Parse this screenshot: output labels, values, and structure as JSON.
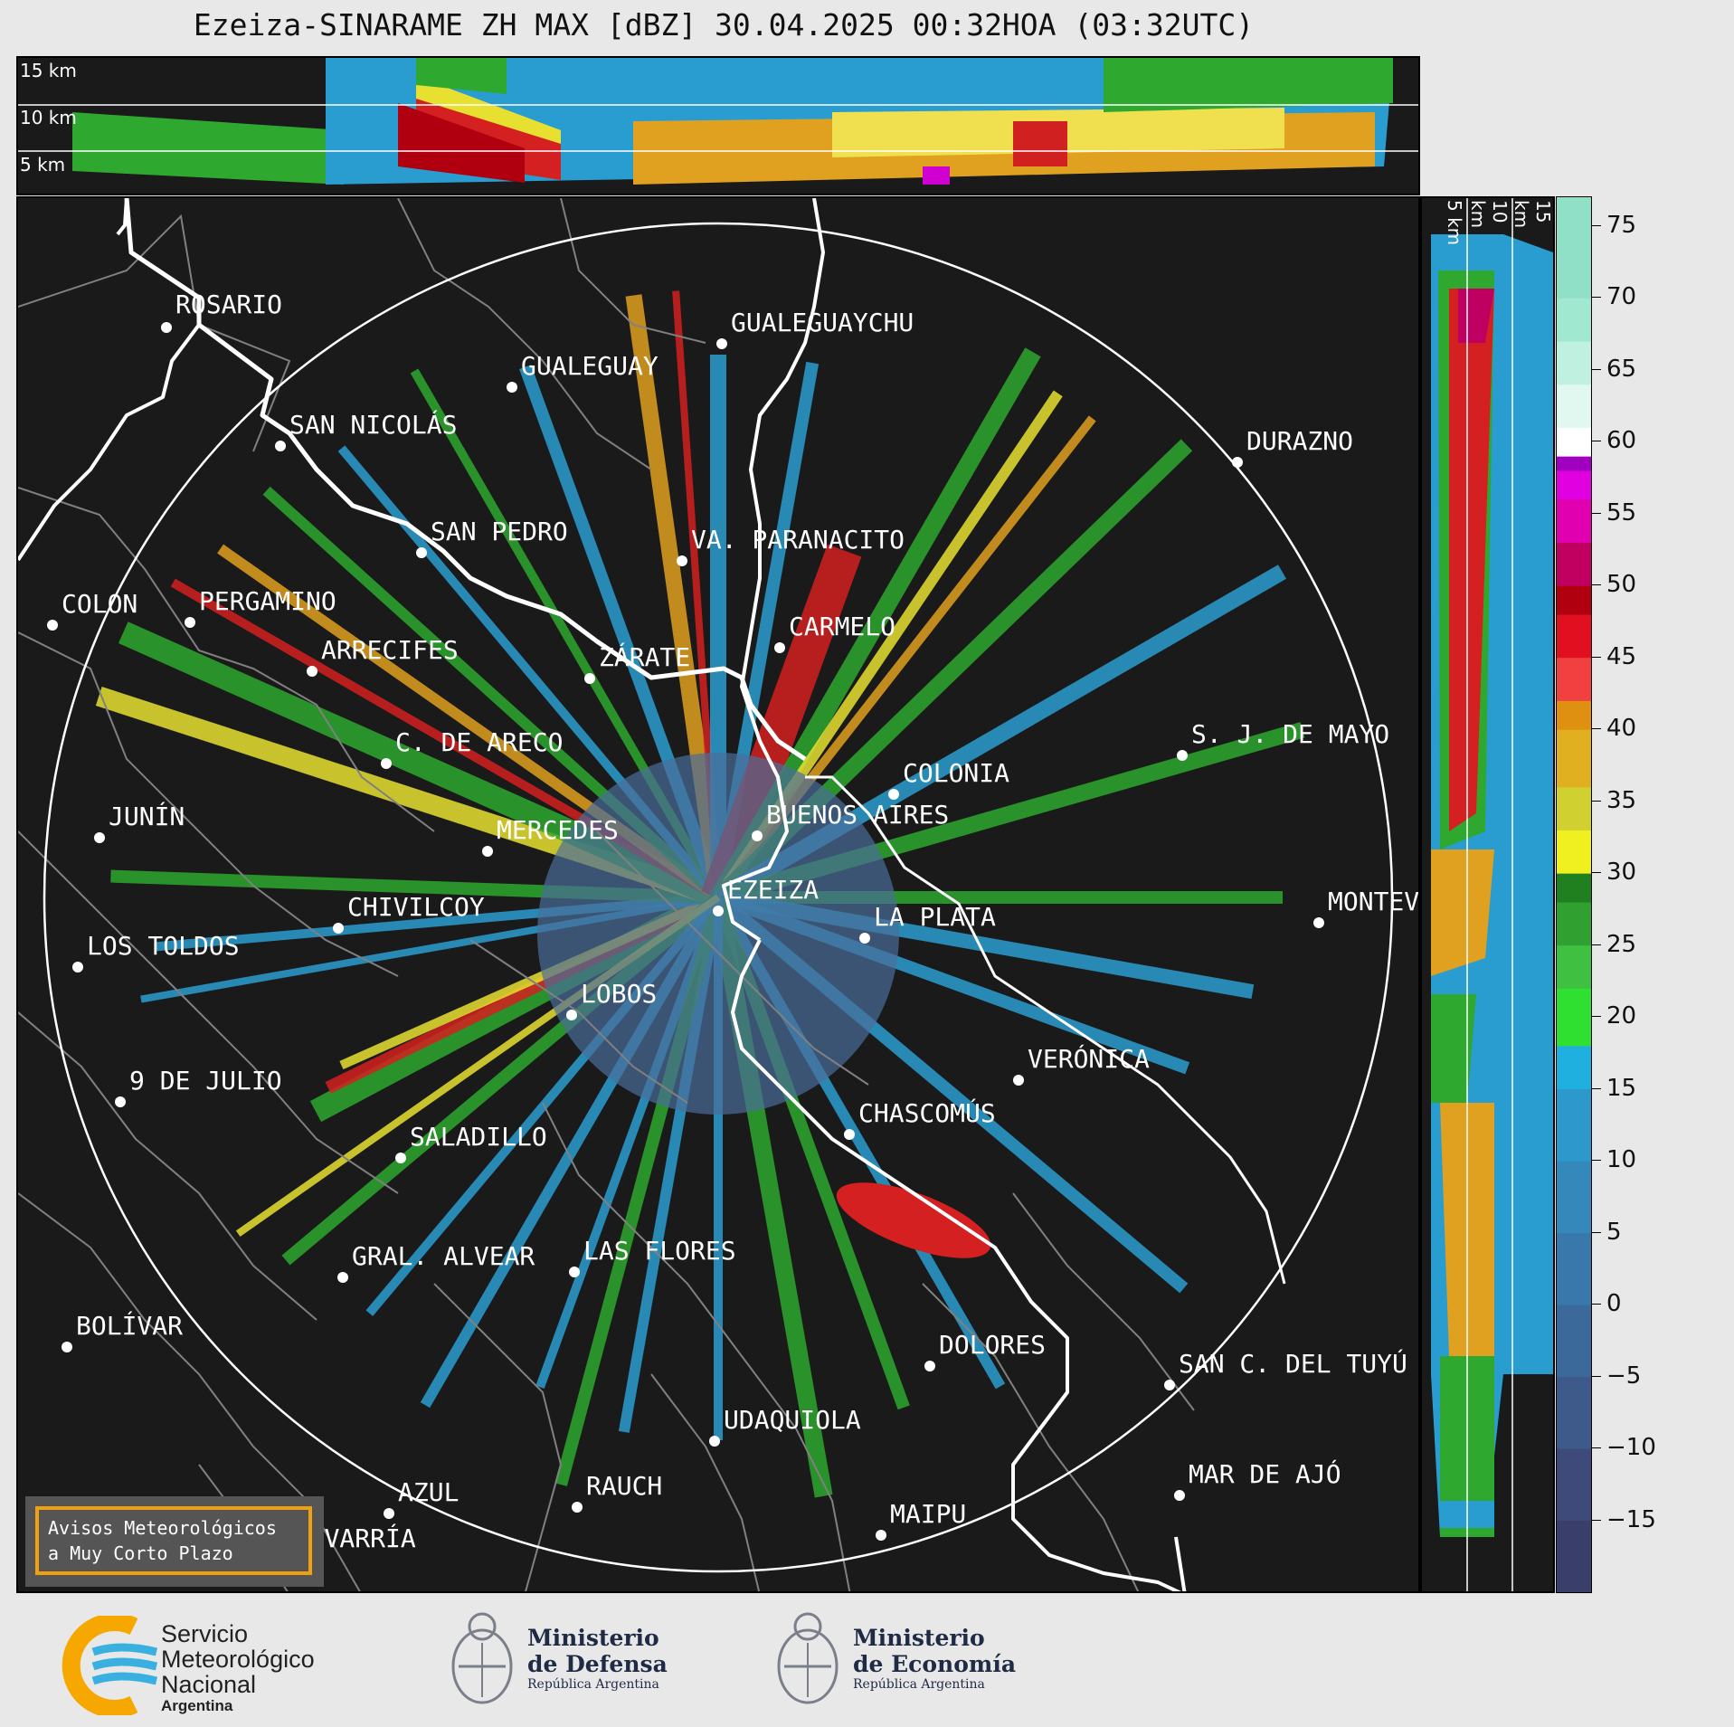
{
  "title": "Ezeiza-SINARAME ZH MAX [dBZ] 30.04.2025 00:32HOA (03:32UTC)",
  "top_panel": {
    "alt_labels": [
      "15 km",
      "10 km",
      "5 km"
    ]
  },
  "side_panel": {
    "alt_labels": [
      "5 km",
      "10 km",
      "15 km"
    ]
  },
  "colorbar": {
    "ticks": [
      "75",
      "70",
      "65",
      "60",
      "55",
      "50",
      "45",
      "40",
      "35",
      "30",
      "25",
      "20",
      "15",
      "10",
      "5",
      "0",
      "−5",
      "−10",
      "−15"
    ],
    "tick_values": [
      75,
      70,
      65,
      60,
      55,
      50,
      45,
      40,
      35,
      30,
      25,
      20,
      15,
      10,
      5,
      0,
      -5,
      -10,
      -15
    ],
    "range": [
      -20,
      77
    ]
  },
  "cities": [
    {
      "name": "ROSARIO"
    },
    {
      "name": "GUALEGUAYCHU"
    },
    {
      "name": "GUALEGUAY"
    },
    {
      "name": "SAN NICOLÁS"
    },
    {
      "name": "DURAZNO"
    },
    {
      "name": "SAN PEDRO"
    },
    {
      "name": "VA. PARANACITO"
    },
    {
      "name": "COLON"
    },
    {
      "name": "PERGAMINO"
    },
    {
      "name": "CARMELO"
    },
    {
      "name": "ARRECIFES"
    },
    {
      "name": "ZÁRATE"
    },
    {
      "name": "S. J. DE MAYO"
    },
    {
      "name": "C. DE ARECO"
    },
    {
      "name": "COLONIA"
    },
    {
      "name": "JUNÍN"
    },
    {
      "name": "BUENOS AIRES"
    },
    {
      "name": "MERCEDES"
    },
    {
      "name": "EZEIZA"
    },
    {
      "name": "CHIVILCOY"
    },
    {
      "name": "LA PLATA"
    },
    {
      "name": "MONTEV"
    },
    {
      "name": "LOS TOLDOS"
    },
    {
      "name": "LOBOS"
    },
    {
      "name": "VERÓNICA"
    },
    {
      "name": "9 DE JULIO"
    },
    {
      "name": "CHASCOMÚS"
    },
    {
      "name": "SALADILLO"
    },
    {
      "name": "GRAL. ALVEAR"
    },
    {
      "name": "LAS FLORES"
    },
    {
      "name": "BOLÍVAR"
    },
    {
      "name": "DOLORES"
    },
    {
      "name": "SAN C. DEL TUYÚ"
    },
    {
      "name": "UDAQUIOLA"
    },
    {
      "name": "AZUL"
    },
    {
      "name": "RAUCH"
    },
    {
      "name": "MAR DE AJÓ"
    },
    {
      "name": "OLAVARRÍA"
    },
    {
      "name": "MAIPU"
    }
  ],
  "avisos": {
    "line1": "Avisos Meteorológicos",
    "line2": "a Muy Corto Plazo"
  },
  "footer": {
    "smn": {
      "line1": "Servicio",
      "line2": "Meteorológico",
      "line3": "Nacional",
      "line4": "Argentina"
    },
    "defensa": {
      "line1": "Ministerio",
      "line2": "de Defensa",
      "line3": "República Argentina"
    },
    "economia": {
      "line1": "Ministerio",
      "line2": "de Economía",
      "line3": "República Argentina"
    }
  },
  "colors": {
    "map_bg": "#1a1a1a",
    "river": "#ffffff",
    "boundary": "#808080",
    "smn_orange": "#f7a800",
    "smn_blue": "#3ab0e0",
    "avisos_border": "#f0a010"
  }
}
